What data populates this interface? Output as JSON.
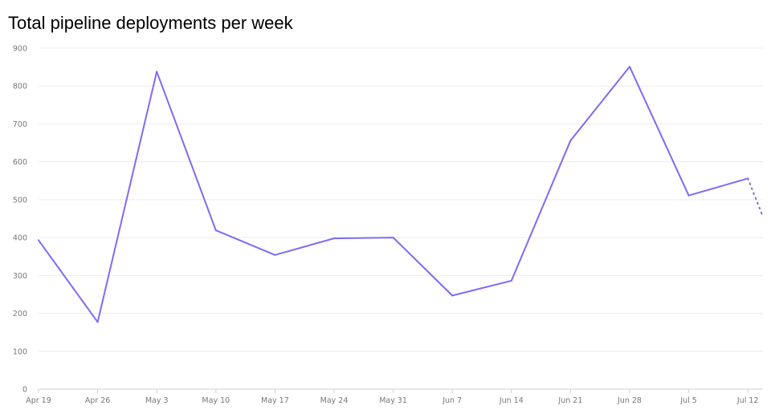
{
  "chart_data": {
    "type": "line",
    "title": "Total pipeline deployments per week",
    "xlabel": "",
    "ylabel": "",
    "categories": [
      "Apr 19",
      "Apr 26",
      "May 3",
      "May 10",
      "May 17",
      "May 24",
      "May 31",
      "Jun 7",
      "Jun 14",
      "Jun 21",
      "Jun 28",
      "Jul 5",
      "Jul 12"
    ],
    "series": [
      {
        "values": [
          393,
          177,
          838,
          419,
          354,
          398,
          400,
          247,
          286,
          656,
          851,
          511,
          556
        ],
        "color": "#7b6cf6"
      }
    ],
    "partial_segment": {
      "from": "Jul 12",
      "from_value": 556,
      "to_value": 455,
      "style": "dotted"
    },
    "ylim": [
      0,
      900
    ],
    "yticks": [
      0,
      100,
      200,
      300,
      400,
      500,
      600,
      700,
      800,
      900
    ],
    "grid": true,
    "legend": "none"
  }
}
